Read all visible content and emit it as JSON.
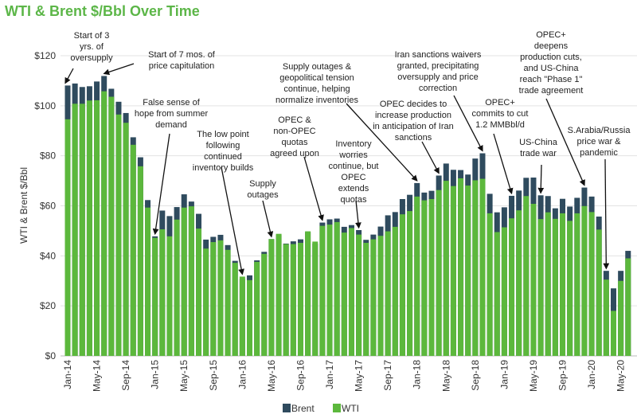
{
  "chart_data": {
    "type": "bar",
    "title": "WTI & Brent $/Bbl Over Time",
    "ylabel": "WTI & Brent $/Bbl",
    "xlabel": "",
    "ylim": [
      0,
      120
    ],
    "yticks": [
      "$0",
      "$20",
      "$40",
      "$60",
      "$80",
      "$100",
      "$120"
    ],
    "ytick_values": [
      0,
      20,
      40,
      60,
      80,
      100,
      120
    ],
    "grid": true,
    "legend_placement": "bottom",
    "colors": {
      "Brent": "#2f4b5e",
      "WTI": "#5cb83c"
    },
    "categories": [
      "Jan-14",
      "Feb-14",
      "Mar-14",
      "Apr-14",
      "May-14",
      "Jun-14",
      "Jul-14",
      "Aug-14",
      "Sep-14",
      "Oct-14",
      "Nov-14",
      "Dec-14",
      "Jan-15",
      "Feb-15",
      "Mar-15",
      "Apr-15",
      "May-15",
      "Jun-15",
      "Jul-15",
      "Aug-15",
      "Sep-15",
      "Oct-15",
      "Nov-15",
      "Dec-15",
      "Jan-16",
      "Feb-16",
      "Mar-16",
      "Apr-16",
      "May-16",
      "Jun-16",
      "Jul-16",
      "Aug-16",
      "Sep-16",
      "Oct-16",
      "Nov-16",
      "Dec-16",
      "Jan-17",
      "Feb-17",
      "Mar-17",
      "Apr-17",
      "May-17",
      "Jun-17",
      "Jul-17",
      "Aug-17",
      "Sep-17",
      "Oct-17",
      "Nov-17",
      "Dec-17",
      "Jan-18",
      "Feb-18",
      "Mar-18",
      "Apr-18",
      "May-18",
      "Jun-18",
      "Jul-18",
      "Aug-18",
      "Sep-18",
      "Oct-18",
      "Nov-18",
      "Dec-18",
      "Jan-19",
      "Feb-19",
      "Mar-19",
      "Apr-19",
      "May-19",
      "Jun-19",
      "Jul-19",
      "Aug-19",
      "Sep-19",
      "Oct-19",
      "Nov-19",
      "Dec-19",
      "Jan-20",
      "Feb-20",
      "Mar-20",
      "Apr-20",
      "May-20",
      "Jun-20"
    ],
    "xtick_labels": [
      "Jan-14",
      "May-14",
      "Sep-14",
      "Jan-15",
      "May-15",
      "Sep-15",
      "Jan-16",
      "May-16",
      "Sep-16",
      "Jan-17",
      "May-17",
      "Sep-17",
      "Jan-18",
      "May-18",
      "Sep-18",
      "Jan-19",
      "May-19",
      "Sep-19",
      "Jan-20",
      "May-20"
    ],
    "series": [
      {
        "name": "Brent",
        "values": [
          108.1,
          108.9,
          107.5,
          107.8,
          109.7,
          111.9,
          106.8,
          101.6,
          97.1,
          87.4,
          79.4,
          62.3,
          47.8,
          58.1,
          55.9,
          59.5,
          64.6,
          61.7,
          56.8,
          46.5,
          47.6,
          48.4,
          44.3,
          38.0,
          30.7,
          32.2,
          38.2,
          41.6,
          46.7,
          48.3,
          44.9,
          45.8,
          46.6,
          49.5,
          44.9,
          53.3,
          54.6,
          54.9,
          51.6,
          52.3,
          50.3,
          46.4,
          48.5,
          51.7,
          56.2,
          57.5,
          62.7,
          64.4,
          69.1,
          65.3,
          66.0,
          72.1,
          76.9,
          74.4,
          74.3,
          72.5,
          78.9,
          81.0,
          64.8,
          57.4,
          59.4,
          64.0,
          66.1,
          71.2,
          71.3,
          64.2,
          63.9,
          59.0,
          62.8,
          59.7,
          63.2,
          67.3,
          63.7,
          55.7,
          34.0,
          27.0,
          34.0,
          42.0
        ]
      },
      {
        "name": "WTI",
        "values": [
          94.6,
          100.8,
          100.8,
          102.1,
          102.2,
          105.8,
          103.6,
          96.5,
          93.2,
          84.4,
          75.8,
          59.3,
          47.2,
          50.6,
          47.8,
          54.5,
          59.3,
          59.8,
          50.9,
          42.9,
          45.5,
          46.2,
          42.4,
          37.2,
          31.7,
          30.3,
          37.6,
          40.8,
          46.7,
          48.8,
          44.7,
          44.7,
          45.2,
          49.8,
          45.7,
          52.0,
          52.5,
          53.5,
          49.3,
          51.1,
          48.5,
          45.2,
          46.6,
          48.0,
          49.8,
          51.6,
          56.6,
          57.9,
          63.7,
          62.2,
          62.7,
          66.3,
          70.0,
          67.9,
          71.0,
          68.1,
          70.2,
          70.8,
          57.0,
          49.5,
          51.4,
          55.0,
          58.2,
          63.9,
          60.8,
          54.7,
          57.4,
          54.8,
          57.0,
          54.0,
          57.0,
          59.9,
          57.5,
          50.5,
          30.5,
          18.0,
          30.0,
          39.0
        ]
      }
    ],
    "annotations": [
      {
        "text": [
          "Start of 3",
          "yrs. of",
          "oversupply"
        ],
        "month": "Jan-14"
      },
      {
        "text": [
          "Start of 7 mos. of",
          "price capitulation"
        ],
        "month": "Jun-14"
      },
      {
        "text": [
          "False sense of",
          "hope from summer",
          "demand"
        ],
        "month": "Jan-15"
      },
      {
        "text": [
          "The low point",
          "following",
          "continued",
          "inventory builds"
        ],
        "month": "Jan-16"
      },
      {
        "text": [
          "Supply",
          "outages"
        ],
        "month": "May-16"
      },
      {
        "text": [
          "OPEC &",
          "non-OPEC",
          "quotas",
          "agreed upon"
        ],
        "month": "Dec-16"
      },
      {
        "text": [
          "Supply outages &",
          "geopolitical tension",
          "continue, helping",
          "normalize inventories"
        ],
        "month": "Jan-18"
      },
      {
        "text": [
          "Inventory",
          "worries",
          "continue, but",
          "OPEC",
          "extends",
          "quotas"
        ],
        "month": "May-17"
      },
      {
        "text": [
          "OPEC decides to",
          "increase production",
          "in anticipation of Iran",
          "sanctions"
        ],
        "month": "Apr-18"
      },
      {
        "text": [
          "Iran sanctions waivers",
          "granted, precipitating",
          "oversupply and price",
          "correction"
        ],
        "month": "Oct-18"
      },
      {
        "text": [
          "OPEC+",
          "commits to cut",
          "1.2 MMBbl/d"
        ],
        "month": "Feb-19"
      },
      {
        "text": [
          "US-China",
          "trade war"
        ],
        "month": "Jun-19"
      },
      {
        "text": [
          "OPEC+",
          "deepens",
          "production cuts,",
          "and US-China",
          "reach \"Phase 1\"",
          "trade agreement"
        ],
        "month": "Dec-19"
      },
      {
        "text": [
          "S.Arabia/Russia",
          "price war &",
          "pandemic"
        ],
        "month": "Mar-20"
      }
    ]
  }
}
